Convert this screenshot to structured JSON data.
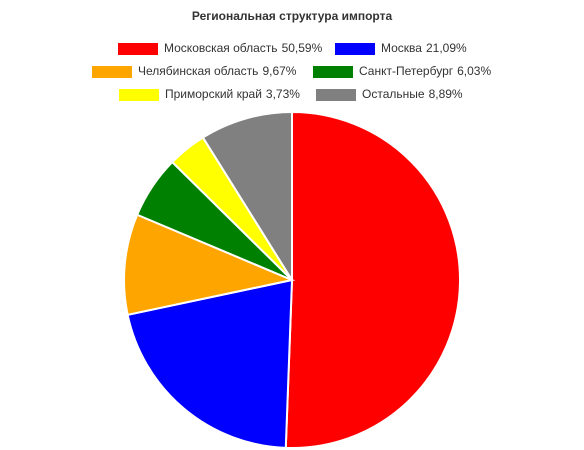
{
  "chart_data": {
    "type": "pie",
    "title": "Региональная структура импорта",
    "categories": [
      "Московская область",
      "Москва",
      "Челябинская область",
      "Санкт-Петербург",
      "Приморский край",
      "Остальные"
    ],
    "values": [
      50.59,
      21.09,
      9.67,
      6.03,
      3.73,
      8.89
    ],
    "value_labels": [
      "50,59%",
      "21,09%",
      "9,67%",
      "6,03%",
      "3,73%",
      "8,89%"
    ],
    "colors": [
      "#ff0000",
      "#0000ff",
      "#ffa500",
      "#008000",
      "#ffff00",
      "#808080"
    ]
  }
}
